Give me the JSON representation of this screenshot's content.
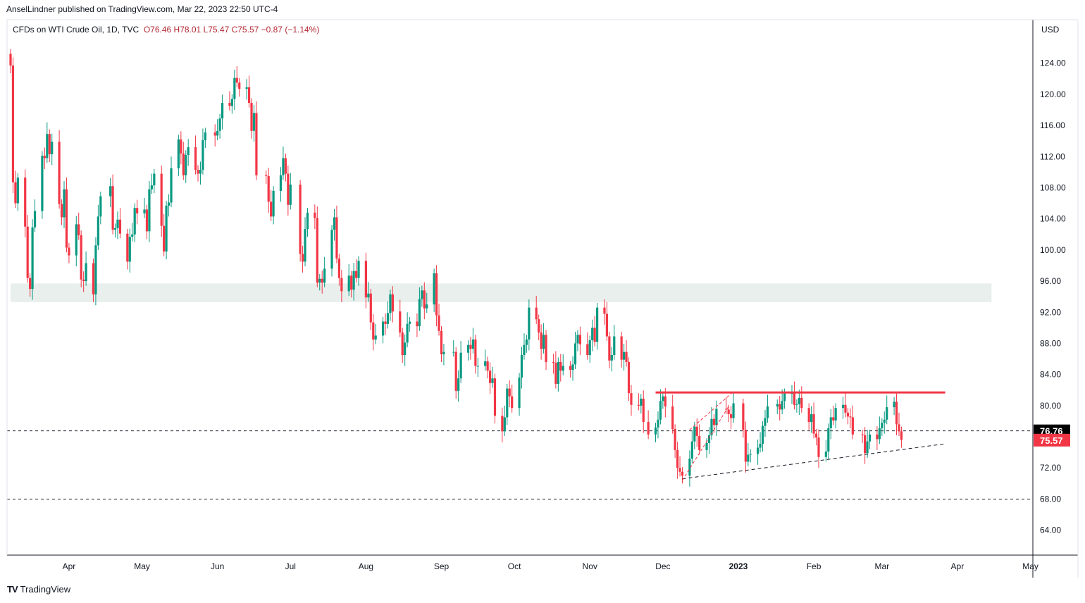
{
  "header": {
    "publisher": "AnselLindner published on TradingView.com, Mar 22, 2023 22:50 UTC-4",
    "symbol": "CFDs on WTI Crude Oil, 1D, TVC",
    "ohlc": "O76.46  H78.01  L75.47  C75.57  −0.87 (−1.14%)"
  },
  "brand": {
    "name": "TradingView",
    "logo": "TV"
  },
  "colors": {
    "up": "#089981",
    "down": "#f23645",
    "resistance": "#f23645",
    "zone": "#e8efec",
    "axis": "#131722"
  },
  "chart_data": {
    "type": "candlestick",
    "title": "CFDs on WTI Crude Oil, 1D, TVC",
    "currency_label": "USD",
    "ylim": [
      60.8,
      129.4
    ],
    "y_ticks": [
      64,
      68,
      72,
      76,
      80,
      84,
      88,
      92,
      96,
      100,
      104,
      108,
      112,
      116,
      120,
      124
    ],
    "y_tick_labels": [
      "64.00",
      "68.00",
      "72.00",
      "76.00",
      "80.00",
      "84.00",
      "88.00",
      "92.00",
      "96.00",
      "100.00",
      "104.00",
      "108.00",
      "112.00",
      "116.00",
      "120.00",
      "124.00"
    ],
    "x_labels": [
      {
        "label": "Apr",
        "date": "2022-04-01"
      },
      {
        "label": "May",
        "date": "2022-05-01"
      },
      {
        "label": "Jun",
        "date": "2022-06-01"
      },
      {
        "label": "Jul",
        "date": "2022-07-01"
      },
      {
        "label": "Aug",
        "date": "2022-08-01"
      },
      {
        "label": "Sep",
        "date": "2022-09-01"
      },
      {
        "label": "Oct",
        "date": "2022-10-01"
      },
      {
        "label": "Nov",
        "date": "2022-11-01"
      },
      {
        "label": "Dec",
        "date": "2022-12-01"
      },
      {
        "label": "2023",
        "date": "2023-01-01",
        "bold": true
      },
      {
        "label": "Feb",
        "date": "2023-02-01"
      },
      {
        "label": "Mar",
        "date": "2023-03-01"
      },
      {
        "label": "Apr",
        "date": "2023-04-01"
      },
      {
        "label": "May",
        "date": "2023-05-01"
      }
    ],
    "x_range": [
      "2022-03-08",
      "2023-05-02"
    ],
    "price_labels": [
      {
        "value": 76.76,
        "text": "76.76",
        "bg": "#000000"
      },
      {
        "value": 75.57,
        "text": "75.57",
        "bg": "#f23645"
      }
    ],
    "close_path": [
      [
        "2022-03-08",
        123.7
      ],
      [
        "2022-03-09",
        108.7
      ],
      [
        "2022-03-10",
        106.0
      ],
      [
        "2022-03-11",
        109.3
      ],
      [
        "2022-03-14",
        103.0
      ],
      [
        "2022-03-15",
        96.4
      ],
      [
        "2022-03-16",
        95.0
      ],
      [
        "2022-03-17",
        102.9
      ],
      [
        "2022-03-18",
        105.0
      ],
      [
        "2022-03-21",
        112.1
      ],
      [
        "2022-03-22",
        111.8
      ],
      [
        "2022-03-23",
        114.9
      ],
      [
        "2022-03-24",
        112.3
      ],
      [
        "2022-03-25",
        113.9
      ],
      [
        "2022-03-28",
        105.9
      ],
      [
        "2022-03-29",
        104.2
      ],
      [
        "2022-03-30",
        107.8
      ],
      [
        "2022-03-31",
        100.3
      ],
      [
        "2022-04-01",
        99.3
      ],
      [
        "2022-04-04",
        103.3
      ],
      [
        "2022-04-05",
        101.9
      ],
      [
        "2022-04-06",
        96.2
      ],
      [
        "2022-04-07",
        96.0
      ],
      [
        "2022-04-08",
        98.3
      ],
      [
        "2022-04-11",
        94.3
      ],
      [
        "2022-04-12",
        100.6
      ],
      [
        "2022-04-13",
        104.3
      ],
      [
        "2022-04-14",
        106.9
      ],
      [
        "2022-04-18",
        108.2
      ],
      [
        "2022-04-19",
        102.6
      ],
      [
        "2022-04-20",
        102.8
      ],
      [
        "2022-04-21",
        103.9
      ],
      [
        "2022-04-22",
        102.1
      ],
      [
        "2022-04-25",
        98.5
      ],
      [
        "2022-04-26",
        101.7
      ],
      [
        "2022-04-27",
        102.0
      ],
      [
        "2022-04-28",
        105.4
      ],
      [
        "2022-04-29",
        104.7
      ],
      [
        "2022-05-02",
        105.2
      ],
      [
        "2022-05-03",
        102.4
      ],
      [
        "2022-05-04",
        107.8
      ],
      [
        "2022-05-05",
        108.3
      ],
      [
        "2022-05-06",
        109.8
      ],
      [
        "2022-05-09",
        103.1
      ],
      [
        "2022-05-10",
        99.8
      ],
      [
        "2022-05-11",
        105.7
      ],
      [
        "2022-05-12",
        106.1
      ],
      [
        "2022-05-13",
        110.5
      ],
      [
        "2022-05-16",
        114.2
      ],
      [
        "2022-05-17",
        112.4
      ],
      [
        "2022-05-18",
        109.6
      ],
      [
        "2022-05-19",
        112.2
      ],
      [
        "2022-05-20",
        113.2
      ],
      [
        "2022-05-23",
        110.3
      ],
      [
        "2022-05-24",
        109.8
      ],
      [
        "2022-05-25",
        110.3
      ],
      [
        "2022-05-26",
        114.1
      ],
      [
        "2022-05-27",
        115.1
      ],
      [
        "2022-05-31",
        114.7
      ],
      [
        "2022-06-01",
        115.3
      ],
      [
        "2022-06-02",
        116.9
      ],
      [
        "2022-06-03",
        118.9
      ],
      [
        "2022-06-06",
        118.5
      ],
      [
        "2022-06-07",
        119.4
      ],
      [
        "2022-06-08",
        122.1
      ],
      [
        "2022-06-09",
        121.5
      ],
      [
        "2022-06-10",
        120.7
      ],
      [
        "2022-06-13",
        120.9
      ],
      [
        "2022-06-14",
        118.9
      ],
      [
        "2022-06-15",
        115.3
      ],
      [
        "2022-06-16",
        117.6
      ],
      [
        "2022-06-17",
        109.6
      ],
      [
        "2022-06-21",
        109.5
      ],
      [
        "2022-06-22",
        106.2
      ],
      [
        "2022-06-23",
        104.3
      ],
      [
        "2022-06-24",
        107.6
      ],
      [
        "2022-06-27",
        109.6
      ],
      [
        "2022-06-28",
        111.8
      ],
      [
        "2022-06-29",
        109.8
      ],
      [
        "2022-06-30",
        105.8
      ],
      [
        "2022-07-01",
        108.4
      ],
      [
        "2022-07-05",
        99.5
      ],
      [
        "2022-07-06",
        98.5
      ],
      [
        "2022-07-07",
        102.7
      ],
      [
        "2022-07-08",
        104.8
      ],
      [
        "2022-07-11",
        104.1
      ],
      [
        "2022-07-12",
        95.8
      ],
      [
        "2022-07-13",
        96.3
      ],
      [
        "2022-07-14",
        95.8
      ],
      [
        "2022-07-15",
        97.6
      ],
      [
        "2022-07-18",
        102.6
      ],
      [
        "2022-07-19",
        104.2
      ],
      [
        "2022-07-20",
        98.9
      ],
      [
        "2022-07-21",
        96.4
      ],
      [
        "2022-07-22",
        94.7
      ],
      [
        "2022-07-25",
        96.7
      ],
      [
        "2022-07-26",
        94.9
      ],
      [
        "2022-07-27",
        97.3
      ],
      [
        "2022-07-28",
        96.4
      ],
      [
        "2022-07-29",
        98.6
      ],
      [
        "2022-08-01",
        93.9
      ],
      [
        "2022-08-02",
        94.4
      ],
      [
        "2022-08-03",
        90.7
      ],
      [
        "2022-08-04",
        88.5
      ],
      [
        "2022-08-05",
        89.0
      ],
      [
        "2022-08-08",
        90.8
      ],
      [
        "2022-08-09",
        90.5
      ],
      [
        "2022-08-10",
        91.9
      ],
      [
        "2022-08-11",
        94.3
      ],
      [
        "2022-08-12",
        92.1
      ],
      [
        "2022-08-15",
        89.4
      ],
      [
        "2022-08-16",
        86.5
      ],
      [
        "2022-08-17",
        88.1
      ],
      [
        "2022-08-18",
        90.5
      ],
      [
        "2022-08-19",
        90.8
      ],
      [
        "2022-08-22",
        90.2
      ],
      [
        "2022-08-23",
        93.7
      ],
      [
        "2022-08-24",
        94.8
      ],
      [
        "2022-08-25",
        92.5
      ],
      [
        "2022-08-26",
        93.0
      ],
      [
        "2022-08-29",
        97.0
      ],
      [
        "2022-08-30",
        91.6
      ],
      [
        "2022-08-31",
        89.6
      ],
      [
        "2022-09-01",
        86.6
      ],
      [
        "2022-09-02",
        86.9
      ],
      [
        "2022-09-06",
        86.9
      ],
      [
        "2022-09-07",
        81.9
      ],
      [
        "2022-09-08",
        83.5
      ],
      [
        "2022-09-09",
        86.8
      ],
      [
        "2022-09-12",
        87.8
      ],
      [
        "2022-09-13",
        87.3
      ],
      [
        "2022-09-14",
        88.5
      ],
      [
        "2022-09-15",
        85.1
      ],
      [
        "2022-09-16",
        85.1
      ],
      [
        "2022-09-19",
        85.7
      ],
      [
        "2022-09-20",
        84.5
      ],
      [
        "2022-09-21",
        82.9
      ],
      [
        "2022-09-22",
        83.5
      ],
      [
        "2022-09-23",
        78.7
      ],
      [
        "2022-09-26",
        76.7
      ],
      [
        "2022-09-27",
        78.5
      ],
      [
        "2022-09-28",
        82.2
      ],
      [
        "2022-09-29",
        81.2
      ],
      [
        "2022-09-30",
        79.7
      ],
      [
        "2022-10-03",
        83.6
      ],
      [
        "2022-10-04",
        86.5
      ],
      [
        "2022-10-05",
        87.8
      ],
      [
        "2022-10-06",
        88.5
      ],
      [
        "2022-10-07",
        92.6
      ],
      [
        "2022-10-10",
        91.1
      ],
      [
        "2022-10-11",
        89.4
      ],
      [
        "2022-10-12",
        87.3
      ],
      [
        "2022-10-13",
        89.1
      ],
      [
        "2022-10-14",
        85.6
      ],
      [
        "2022-10-17",
        85.5
      ],
      [
        "2022-10-18",
        82.8
      ],
      [
        "2022-10-19",
        85.6
      ],
      [
        "2022-10-20",
        84.5
      ],
      [
        "2022-10-21",
        85.1
      ],
      [
        "2022-10-24",
        84.6
      ],
      [
        "2022-10-25",
        85.3
      ],
      [
        "2022-10-26",
        88.0
      ],
      [
        "2022-10-27",
        89.1
      ],
      [
        "2022-10-28",
        87.9
      ],
      [
        "2022-10-31",
        86.5
      ],
      [
        "2022-11-01",
        88.4
      ],
      [
        "2022-11-02",
        90.0
      ],
      [
        "2022-11-03",
        88.2
      ],
      [
        "2022-11-04",
        92.6
      ],
      [
        "2022-11-07",
        91.8
      ],
      [
        "2022-11-08",
        88.9
      ],
      [
        "2022-11-09",
        85.8
      ],
      [
        "2022-11-10",
        86.5
      ],
      [
        "2022-11-11",
        88.9
      ],
      [
        "2022-11-14",
        85.9
      ],
      [
        "2022-11-15",
        86.9
      ],
      [
        "2022-11-16",
        85.6
      ],
      [
        "2022-11-17",
        81.6
      ],
      [
        "2022-11-18",
        80.1
      ],
      [
        "2022-11-21",
        80.0
      ],
      [
        "2022-11-22",
        80.9
      ],
      [
        "2022-11-23",
        77.9
      ],
      [
        "2022-11-25",
        76.3
      ],
      [
        "2022-11-28",
        77.2
      ],
      [
        "2022-11-29",
        78.2
      ],
      [
        "2022-11-30",
        80.6
      ],
      [
        "2022-12-01",
        81.2
      ],
      [
        "2022-12-02",
        79.9
      ],
      [
        "2022-12-05",
        77.0
      ],
      [
        "2022-12-06",
        74.3
      ],
      [
        "2022-12-07",
        72.0
      ],
      [
        "2022-12-08",
        71.5
      ],
      [
        "2022-12-09",
        71.0
      ],
      [
        "2022-12-12",
        73.2
      ],
      [
        "2022-12-13",
        75.4
      ],
      [
        "2022-12-14",
        77.3
      ],
      [
        "2022-12-15",
        76.1
      ],
      [
        "2022-12-16",
        74.3
      ],
      [
        "2022-12-19",
        75.2
      ],
      [
        "2022-12-20",
        76.2
      ],
      [
        "2022-12-21",
        78.3
      ],
      [
        "2022-12-22",
        77.5
      ],
      [
        "2022-12-23",
        79.6
      ],
      [
        "2022-12-27",
        79.5
      ],
      [
        "2022-12-28",
        78.9
      ],
      [
        "2022-12-29",
        78.4
      ],
      [
        "2022-12-30",
        80.3
      ],
      [
        "2023-01-03",
        76.9
      ],
      [
        "2023-01-04",
        72.8
      ],
      [
        "2023-01-05",
        73.7
      ],
      [
        "2023-01-06",
        73.8
      ],
      [
        "2023-01-09",
        74.6
      ],
      [
        "2023-01-10",
        75.1
      ],
      [
        "2023-01-11",
        77.4
      ],
      [
        "2023-01-12",
        78.4
      ],
      [
        "2023-01-13",
        79.9
      ],
      [
        "2023-01-17",
        80.2
      ],
      [
        "2023-01-18",
        79.5
      ],
      [
        "2023-01-19",
        80.6
      ],
      [
        "2023-01-20",
        81.6
      ],
      [
        "2023-01-23",
        81.6
      ],
      [
        "2023-01-24",
        80.1
      ],
      [
        "2023-01-25",
        80.2
      ],
      [
        "2023-01-26",
        81.0
      ],
      [
        "2023-01-27",
        79.7
      ],
      [
        "2023-01-30",
        77.9
      ],
      [
        "2023-01-31",
        78.9
      ],
      [
        "2023-02-01",
        76.4
      ],
      [
        "2023-02-02",
        75.9
      ],
      [
        "2023-02-03",
        73.4
      ],
      [
        "2023-02-06",
        74.1
      ],
      [
        "2023-02-07",
        77.1
      ],
      [
        "2023-02-08",
        78.5
      ],
      [
        "2023-02-09",
        78.1
      ],
      [
        "2023-02-10",
        79.7
      ],
      [
        "2023-02-13",
        80.1
      ],
      [
        "2023-02-14",
        79.1
      ],
      [
        "2023-02-15",
        78.6
      ],
      [
        "2023-02-16",
        78.5
      ],
      [
        "2023-02-17",
        76.3
      ],
      [
        "2023-02-21",
        76.2
      ],
      [
        "2023-02-22",
        73.9
      ],
      [
        "2023-02-23",
        75.4
      ],
      [
        "2023-02-24",
        76.3
      ],
      [
        "2023-02-27",
        75.7
      ],
      [
        "2023-02-28",
        77.1
      ],
      [
        "2023-03-01",
        77.8
      ],
      [
        "2023-03-02",
        78.2
      ],
      [
        "2023-03-03",
        79.8
      ],
      [
        "2023-03-06",
        80.5
      ],
      [
        "2023-03-07",
        77.6
      ],
      [
        "2023-03-08",
        76.7
      ],
      [
        "2023-03-09",
        75.6
      ]
    ],
    "annotations": {
      "resistance_line": {
        "from_date": "2022-11-28",
        "to_date": "2023-03-27",
        "value": 81.7
      },
      "supply_zone": {
        "from_date": "2022-03-08",
        "to_date": "2023-04-15",
        "from_value": 93.3,
        "to_value": 95.7
      },
      "dashed_levels": [
        76.76,
        68.0
      ],
      "ascending_trendline": {
        "from": [
          "2022-12-09",
          70.6
        ],
        "to": [
          "2023-03-27",
          75.1
        ]
      },
      "flag_channel": {
        "lower_from": [
          "2022-12-09",
          70.4
        ],
        "lower_to": [
          "2022-12-28",
          79.9
        ],
        "upper_from": [
          "2022-12-12",
          76.9
        ],
        "upper_to": [
          "2022-12-30",
          81.8
        ]
      }
    }
  }
}
